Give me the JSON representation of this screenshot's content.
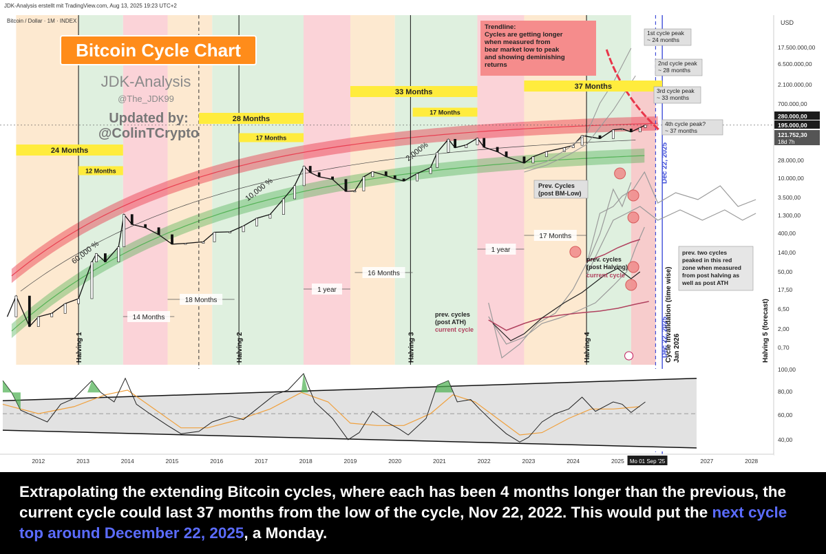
{
  "header": {
    "credit": "JDK-Analysis erstellt mit TradingView.com, Aug 13, 2025 19:23 UTC+2",
    "symbol": "Bitcoin / Dollar · 1M · INDEX",
    "currency": "USD"
  },
  "title_box": {
    "title": "Bitcoin Cycle Chart",
    "author": "JDK-Analysis",
    "handle": "@The_JDK99",
    "updated_by": "Updated by:",
    "updater": "@ColinTCrypto"
  },
  "colors": {
    "orange_band": "#fde9d0",
    "red_band": "#fbd3d8",
    "green_band": "#dff0df",
    "label_yellow": "#ffec3d",
    "title_orange": "#ff8c1a",
    "red_curve": "#e8364a",
    "green_curve": "#4caf50",
    "accent_blue": "#3f4ed8"
  },
  "chart_data": {
    "type": "line",
    "scale": "log",
    "x_axis": {
      "ticks": [
        "2012",
        "2013",
        "2014",
        "2015",
        "2016",
        "2017",
        "2018",
        "2019",
        "2020",
        "2021",
        "2022",
        "2023",
        "2024",
        "2025",
        "2027",
        "2028"
      ],
      "current_label": "Mo 01 Sep '25",
      "range": [
        2011.2,
        2028.5
      ]
    },
    "y_axis": {
      "ticks": [
        "17.500.000,00",
        "6.500.000,00",
        "2.100.000,00",
        "700.000,00",
        "28.000,00",
        "10.000,00",
        "3.500,00",
        "1.300,00",
        "400,00",
        "140,00",
        "50,00",
        "17,50",
        "6,50",
        "2,00",
        "0,70"
      ],
      "range": [
        0.4,
        40000000
      ]
    },
    "price_tags": [
      {
        "label": "280.000,00",
        "value": 280000
      },
      {
        "label": "195.000,00",
        "value": 195000
      },
      {
        "label": "121.752,30",
        "value": 121752.3,
        "sub": "18d 7h"
      }
    ],
    "series": [
      {
        "points": [
          [
            2011.3,
            5
          ],
          [
            2011.5,
            15
          ],
          [
            2011.8,
            3
          ],
          [
            2012.0,
            5
          ],
          [
            2012.3,
            6
          ],
          [
            2012.6,
            10
          ],
          [
            2012.9,
            13
          ],
          [
            2013.2,
            90
          ],
          [
            2013.3,
            140
          ],
          [
            2013.5,
            90
          ],
          [
            2013.8,
            200
          ],
          [
            2013.92,
            1100
          ],
          [
            2014.1,
            650
          ],
          [
            2014.4,
            550
          ],
          [
            2014.7,
            380
          ],
          [
            2015.0,
            230
          ],
          [
            2015.3,
            240
          ],
          [
            2015.7,
            260
          ],
          [
            2015.95,
            430
          ],
          [
            2016.3,
            440
          ],
          [
            2016.6,
            600
          ],
          [
            2016.9,
            900
          ],
          [
            2017.2,
            1100
          ],
          [
            2017.5,
            2500
          ],
          [
            2017.75,
            5000
          ],
          [
            2017.96,
            14000
          ],
          [
            2018.1,
            10000
          ],
          [
            2018.3,
            8000
          ],
          [
            2018.6,
            7000
          ],
          [
            2018.9,
            3700
          ],
          [
            2019.1,
            3800
          ],
          [
            2019.3,
            8000
          ],
          [
            2019.5,
            10500
          ],
          [
            2019.8,
            8500
          ],
          [
            2020.0,
            7200
          ],
          [
            2020.2,
            6400
          ],
          [
            2020.5,
            9500
          ],
          [
            2020.8,
            13000
          ],
          [
            2020.95,
            29000
          ],
          [
            2021.2,
            58000
          ],
          [
            2021.35,
            37000
          ],
          [
            2021.6,
            43000
          ],
          [
            2021.85,
            61000
          ],
          [
            2022.0,
            38000
          ],
          [
            2022.3,
            30000
          ],
          [
            2022.5,
            23000
          ],
          [
            2022.9,
            16500
          ],
          [
            2023.1,
            23000
          ],
          [
            2023.4,
            30000
          ],
          [
            2023.8,
            37000
          ],
          [
            2024.0,
            42000
          ],
          [
            2024.2,
            70000
          ],
          [
            2024.6,
            60000
          ],
          [
            2024.9,
            95000
          ],
          [
            2025.1,
            100000
          ],
          [
            2025.3,
            85000
          ],
          [
            2025.5,
            107000
          ],
          [
            2025.62,
            121752
          ]
        ]
      }
    ],
    "growth_labels": [
      {
        "label": "60,000 %",
        "x": 2012.8,
        "y": 80
      },
      {
        "label": "10,000 %",
        "x": 2016.7,
        "y": 2200
      },
      {
        "label": "2,000%",
        "x": 2020.3,
        "y": 18000
      }
    ],
    "cycle_labels": [
      {
        "label": "24 Months",
        "x1": 2011.5,
        "x2": 2013.9,
        "row": 1
      },
      {
        "label": "12 Months",
        "x1": 2012.9,
        "x2": 2013.9,
        "row": 2
      },
      {
        "label": "28 Months",
        "x1": 2015.6,
        "x2": 2017.95,
        "row": 1
      },
      {
        "label": "17 Months",
        "x1": 2016.5,
        "x2": 2017.95,
        "row": 2
      },
      {
        "label": "33 Months",
        "x1": 2019.0,
        "x2": 2021.85,
        "row": 1
      },
      {
        "label": "17 Months",
        "x1": 2020.4,
        "x2": 2021.85,
        "row": 2
      },
      {
        "label": "37 Months",
        "x1": 2022.9,
        "x2": 2026.0,
        "row": 1
      }
    ],
    "duration_labels": [
      {
        "label": "14 Months",
        "x1": 2013.9,
        "x2": 2015.05
      },
      {
        "label": "18 Months",
        "x1": 2014.9,
        "x2": 2016.4
      },
      {
        "label": "1 year",
        "x1": 2017.95,
        "x2": 2019.0
      },
      {
        "label": "16 Months",
        "x1": 2019.1,
        "x2": 2020.4
      },
      {
        "label": "1 year",
        "x1": 2021.85,
        "x2": 2022.9
      },
      {
        "label": "17 Months",
        "x1": 2022.9,
        "x2": 2024.3
      }
    ],
    "halvings": [
      {
        "label": "Halving 1",
        "x": 2012.9
      },
      {
        "label": "Halving 2",
        "x": 2016.5
      },
      {
        "label": "Halving 3",
        "x": 2020.35
      },
      {
        "label": "Halving 4",
        "x": 2024.3
      },
      {
        "label": "Halving 5 (forecast)",
        "x": 2028.3
      }
    ],
    "annotations": {
      "trendline": "Trendline:\nCycles are getting longer\nwhen measured from\nbear market low to peak\nand showing deminishing\nreturns",
      "peaks": [
        {
          "label": "1st cycle peak\n~ 24 months"
        },
        {
          "label": "2nd cycle peak\n~ 28 months"
        },
        {
          "label": "3rd cycle peak\n~ 33 months"
        },
        {
          "label": "4th cycle peak?\n~ 37 months"
        }
      ],
      "prev_cycles_bm": "Prev. Cycles\n(post BM-Low)",
      "post_ath": "prev. cycles\n(post ATH)",
      "post_ath_current": "current cycle",
      "post_halving": "prev. cycles\n(post Halving)",
      "post_halving_current": "current cycle",
      "red_zone_note": "prev. two cycles\npeaked in this red\nzone when measured\nfrom post halving as\nwell as post ATH",
      "dec_date": "Dec 22, 2025",
      "invalidation": "Cycle invalidation (time wise)\nJan 2026"
    },
    "oscillator": {
      "y_ticks": [
        "100,00",
        "80,00",
        "60,00",
        "40,00"
      ],
      "range": [
        30,
        100
      ],
      "points": [
        [
          2011.2,
          90
        ],
        [
          2011.4,
          80
        ],
        [
          2011.6,
          65
        ],
        [
          2011.9,
          60
        ],
        [
          2012.2,
          55
        ],
        [
          2012.5,
          70
        ],
        [
          2012.8,
          75
        ],
        [
          2013.2,
          90
        ],
        [
          2013.4,
          80
        ],
        [
          2013.7,
          72
        ],
        [
          2013.95,
          92
        ],
        [
          2014.2,
          70
        ],
        [
          2014.5,
          62
        ],
        [
          2014.9,
          52
        ],
        [
          2015.2,
          45
        ],
        [
          2015.6,
          47
        ],
        [
          2015.9,
          55
        ],
        [
          2016.3,
          60
        ],
        [
          2016.6,
          57
        ],
        [
          2016.9,
          66
        ],
        [
          2017.3,
          78
        ],
        [
          2017.6,
          82
        ],
        [
          2017.95,
          96
        ],
        [
          2018.2,
          72
        ],
        [
          2018.6,
          58
        ],
        [
          2018.95,
          40
        ],
        [
          2019.2,
          46
        ],
        [
          2019.5,
          64
        ],
        [
          2019.8,
          55
        ],
        [
          2020.1,
          49
        ],
        [
          2020.3,
          44
        ],
        [
          2020.7,
          58
        ],
        [
          2020.95,
          86
        ],
        [
          2021.2,
          90
        ],
        [
          2021.4,
          72
        ],
        [
          2021.7,
          74
        ],
        [
          2021.9,
          66
        ],
        [
          2022.2,
          55
        ],
        [
          2022.5,
          45
        ],
        [
          2022.8,
          38
        ],
        [
          2023.0,
          42
        ],
        [
          2023.3,
          55
        ],
        [
          2023.6,
          62
        ],
        [
          2023.9,
          66
        ],
        [
          2024.2,
          76
        ],
        [
          2024.5,
          64
        ],
        [
          2024.9,
          72
        ],
        [
          2025.1,
          70
        ],
        [
          2025.3,
          63
        ],
        [
          2025.62,
          72
        ]
      ],
      "ma_points": [
        [
          2011.2,
          70
        ],
        [
          2012.0,
          62
        ],
        [
          2012.8,
          68
        ],
        [
          2013.5,
          78
        ],
        [
          2014.0,
          82
        ],
        [
          2014.6,
          66
        ],
        [
          2015.2,
          50
        ],
        [
          2015.8,
          50
        ],
        [
          2016.5,
          57
        ],
        [
          2017.2,
          66
        ],
        [
          2017.9,
          80
        ],
        [
          2018.5,
          72
        ],
        [
          2019.0,
          54
        ],
        [
          2019.6,
          52
        ],
        [
          2020.2,
          52
        ],
        [
          2020.8,
          62
        ],
        [
          2021.3,
          78
        ],
        [
          2021.8,
          72
        ],
        [
          2022.3,
          58
        ],
        [
          2022.8,
          44
        ],
        [
          2023.3,
          46
        ],
        [
          2023.9,
          58
        ],
        [
          2024.4,
          66
        ],
        [
          2024.9,
          66
        ],
        [
          2025.5,
          68
        ]
      ]
    }
  },
  "caption": {
    "part1": "Extrapolating the extending Bitcoin cycles, where each has been 4 months longer than the previous, the current cycle could last 37 months from the low of the cycle, Nov 22, 2022.  This would put the ",
    "highlight": "next cycle top around December 22, 2025",
    "part2": ", a Monday."
  }
}
